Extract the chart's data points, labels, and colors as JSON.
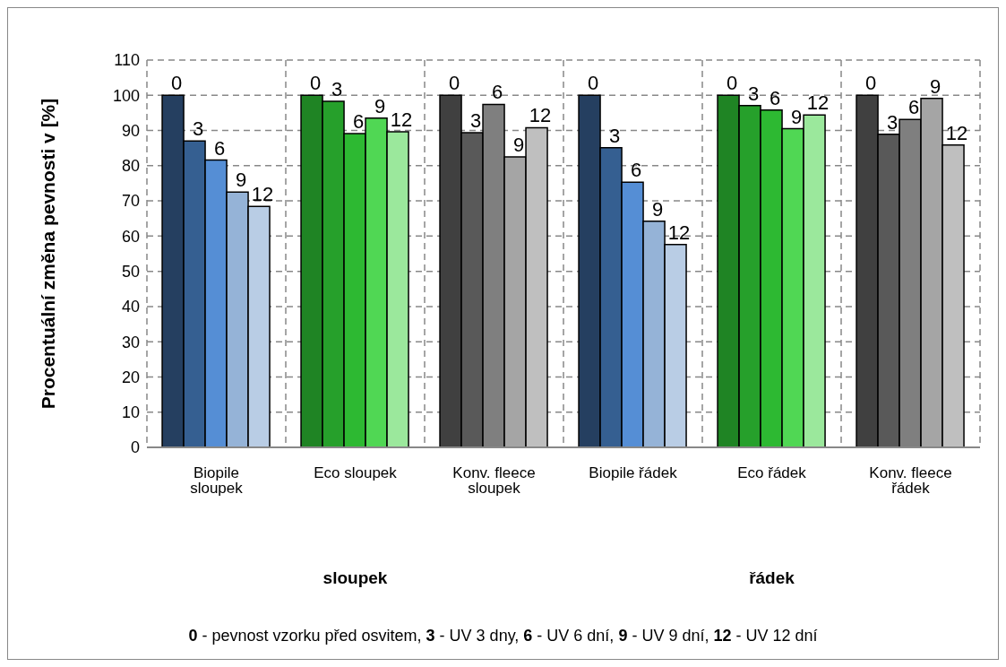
{
  "chart_data": {
    "type": "bar",
    "ylabel": "Procentuální změna pevnosti v [%]",
    "categories": [
      "Biopile sloupek",
      "Eco sloupek",
      "Konv. fleece sloupek",
      "Biopile řádek",
      "Eco řádek",
      "Konv. fleece řádek"
    ],
    "series": [
      {
        "name": "0",
        "colors": [
          "#253f60",
          "#1f8424",
          "#404040",
          "#253f60",
          "#1f8424",
          "#404040"
        ],
        "values": [
          100,
          100,
          100,
          100,
          100,
          100
        ]
      },
      {
        "name": "3",
        "colors": [
          "#355f91",
          "#26a02b",
          "#595959",
          "#355f91",
          "#26a02b",
          "#595959"
        ],
        "values": [
          87.0,
          98.3,
          89.4,
          85.1,
          97.1,
          88.9
        ]
      },
      {
        "name": "6",
        "colors": [
          "#558ed5",
          "#2db932",
          "#7f7f7f",
          "#558ed5",
          "#2db932",
          "#7f7f7f"
        ],
        "values": [
          81.6,
          89.1,
          97.4,
          75.3,
          95.8,
          93.1
        ]
      },
      {
        "name": "9",
        "colors": [
          "#95b3d7",
          "#50d754",
          "#a5a5a5",
          "#95b3d7",
          "#50d754",
          "#a5a5a5"
        ],
        "values": [
          72.5,
          93.5,
          82.5,
          64.2,
          90.5,
          99.1
        ]
      },
      {
        "name": "12",
        "colors": [
          "#b9cde5",
          "#9be89c",
          "#bfbfbf",
          "#b9cde5",
          "#9be89c",
          "#bfbfbf"
        ],
        "values": [
          68.4,
          89.6,
          90.8,
          57.6,
          94.4,
          85.9
        ]
      }
    ],
    "ylim": [
      0,
      110
    ],
    "yticks": [
      0,
      10,
      20,
      30,
      40,
      50,
      60,
      70,
      80,
      90,
      100,
      110
    ],
    "grid": true,
    "annotations": [
      "sloupek",
      "řádek",
      "0 - pevnost vzorku před osvitem, 3 - UV 3 dny, 6 - UV 6 dní, 9 - UV 9 dní, 12 - UV 12 dní"
    ]
  }
}
